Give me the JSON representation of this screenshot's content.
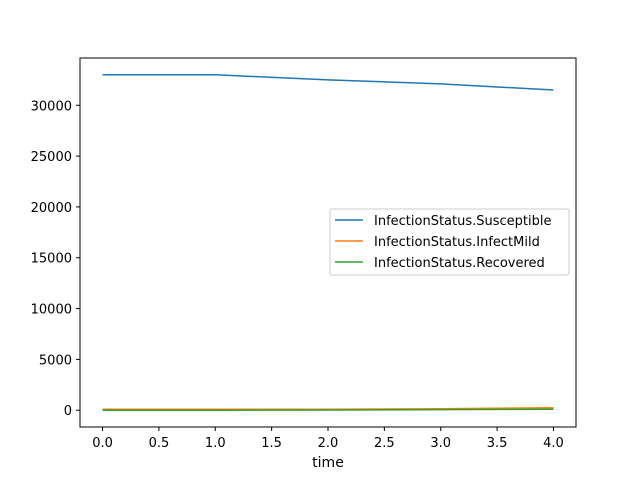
{
  "chart_data": {
    "type": "line",
    "title": "",
    "xlabel": "time",
    "ylabel": "",
    "x": [
      0,
      1,
      2,
      3,
      4
    ],
    "xlim": [
      -0.2,
      4.2
    ],
    "ylim": [
      -1650,
      34650
    ],
    "xticks": [
      0.0,
      0.5,
      1.0,
      1.5,
      2.0,
      2.5,
      3.0,
      3.5,
      4.0
    ],
    "xtick_labels": [
      "0.0",
      "0.5",
      "1.0",
      "1.5",
      "2.0",
      "2.5",
      "3.0",
      "3.5",
      "4.0"
    ],
    "yticks": [
      0,
      5000,
      10000,
      15000,
      20000,
      25000,
      30000
    ],
    "ytick_labels": [
      "0",
      "5000",
      "10000",
      "15000",
      "20000",
      "25000",
      "30000"
    ],
    "grid": false,
    "legend_position": "center-right",
    "series": [
      {
        "name": "InfectionStatus.Susceptible",
        "color": "#1f77b4",
        "values": [
          33000,
          33000,
          32500,
          32100,
          31500
        ]
      },
      {
        "name": "InfectionStatus.InfectMild",
        "color": "#ff7f0e",
        "values": [
          100,
          100,
          100,
          150,
          250
        ]
      },
      {
        "name": "InfectionStatus.Recovered",
        "color": "#2ca02c",
        "values": [
          0,
          0,
          20,
          60,
          100
        ]
      }
    ]
  }
}
